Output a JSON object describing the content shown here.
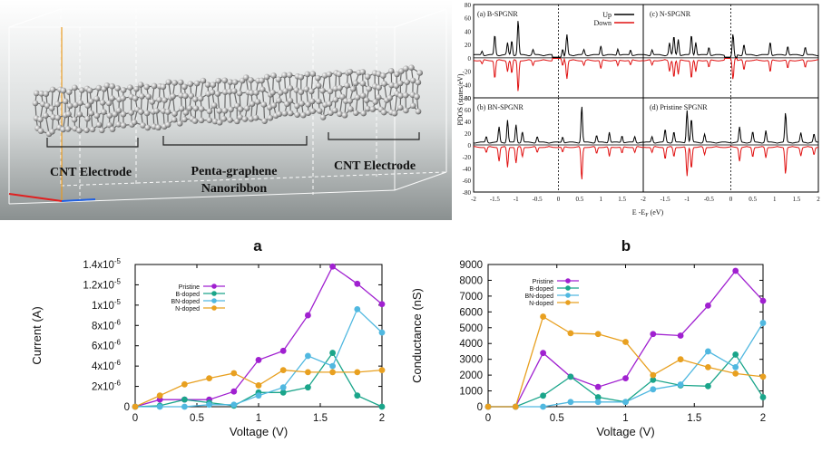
{
  "device_panel": {
    "left_label": "CNT Electrode",
    "center_label_line1": "Penta-graphene",
    "center_label_line2": "Nanoribbon",
    "right_label": "CNT Electrode"
  },
  "pdos_panel": {
    "ylabel": "PDOS (states/eV)",
    "xlabel": "E -E",
    "xlabel_sub": "F",
    "xlabel_unit": " (eV)",
    "yticks_top": [
      "80",
      "60",
      "40",
      "20",
      "0",
      "-20",
      "-40",
      "-60"
    ],
    "yticks_bottom": [
      "80",
      "60",
      "40",
      "20",
      "0",
      "-20",
      "-40",
      "-60",
      "-80"
    ],
    "xticks": [
      "-2",
      "-1.5",
      "-1",
      "-0.5",
      "0",
      "0.5",
      "1",
      "1.5",
      "2"
    ],
    "xticks_left_mid": [
      "-2",
      "-1.5",
      "-1",
      "-0.5",
      "0",
      "0.5",
      "1",
      "1.5"
    ],
    "legend_up": "Up",
    "legend_down": "Down",
    "up_color": "#000000",
    "down_color": "#e01010",
    "subpanels": [
      {
        "label": "(a) B-SPGNR"
      },
      {
        "label": "(c) N-SPGNR"
      },
      {
        "label": "(b) BN-SPGNR"
      },
      {
        "label": "(d) Pristine SPGNR"
      }
    ]
  },
  "chart_data": [
    {
      "type": "line",
      "panel_letter": "a",
      "title": "a",
      "xlabel": "Voltage (V)",
      "ylabel": "Current (A)",
      "xlim": [
        0,
        2
      ],
      "ylim": [
        0,
        1.4e-05
      ],
      "xticks": [
        "0",
        "0.5",
        "1",
        "1.5",
        "2"
      ],
      "yticks": [
        "0",
        "2x10-6",
        "4x10-6",
        "6x10-6",
        "8x10-6",
        "1x10-5",
        "1.2x10-5",
        "1.4x10-5"
      ],
      "x": [
        0,
        0.2,
        0.4,
        0.6,
        0.8,
        1.0,
        1.2,
        1.4,
        1.6,
        1.8,
        2.0
      ],
      "series": [
        {
          "name": "Pristine",
          "color": "#a020d0",
          "values": [
            0,
            7e-07,
            7e-07,
            7e-07,
            1.5e-06,
            4.6e-06,
            5.5e-06,
            9e-06,
            1.38e-05,
            1.21e-05,
            1.01e-05
          ]
        },
        {
          "name": "B-doped",
          "color": "#1aa58a",
          "values": [
            0,
            1e-07,
            7e-07,
            4e-07,
            1e-07,
            1.4e-06,
            1.4e-06,
            1.9e-06,
            5.3e-06,
            1.1e-06,
            0
          ]
        },
        {
          "name": "BN-doped",
          "color": "#50b8e0",
          "values": [
            0,
            0,
            0,
            2e-07,
            2e-07,
            1.1e-06,
            1.9e-06,
            5e-06,
            4e-06,
            9.6e-06,
            7.3e-06
          ]
        },
        {
          "name": "N-doped",
          "color": "#e8a020",
          "values": [
            0,
            1.1e-06,
            2.2e-06,
            2.8e-06,
            3.3e-06,
            2.1e-06,
            3.6e-06,
            3.4e-06,
            3.4e-06,
            3.4e-06,
            3.6e-06
          ]
        }
      ]
    },
    {
      "type": "line",
      "panel_letter": "b",
      "title": "b",
      "xlabel": "Voltage (V)",
      "ylabel": "Conductance (nS)",
      "xlim": [
        0,
        2
      ],
      "ylim": [
        0,
        9000
      ],
      "xticks": [
        "0",
        "0.5",
        "1",
        "1.5",
        "2"
      ],
      "yticks": [
        "0",
        "1000",
        "2000",
        "3000",
        "4000",
        "5000",
        "6000",
        "7000",
        "8000",
        "9000"
      ],
      "x": [
        0,
        0.2,
        0.4,
        0.6,
        0.8,
        1.0,
        1.2,
        1.4,
        1.6,
        1.8,
        2.0
      ],
      "series": [
        {
          "name": "Pristine",
          "color": "#a020d0",
          "values": [
            0,
            0,
            3400,
            1900,
            1250,
            1800,
            4600,
            4500,
            6400,
            8600,
            6700
          ]
        },
        {
          "name": "B-doped",
          "color": "#1aa58a",
          "values": [
            0,
            0,
            700,
            1900,
            600,
            300,
            1700,
            1350,
            1300,
            3300,
            600
          ]
        },
        {
          "name": "BN-doped",
          "color": "#50b8e0",
          "values": [
            0,
            0,
            0,
            300,
            300,
            300,
            1100,
            1400,
            3500,
            2500,
            5300
          ]
        },
        {
          "name": "N-doped",
          "color": "#e8a020",
          "values": [
            0,
            0,
            5700,
            4650,
            4600,
            4100,
            2000,
            3000,
            2500,
            2100,
            1900
          ]
        }
      ]
    }
  ]
}
